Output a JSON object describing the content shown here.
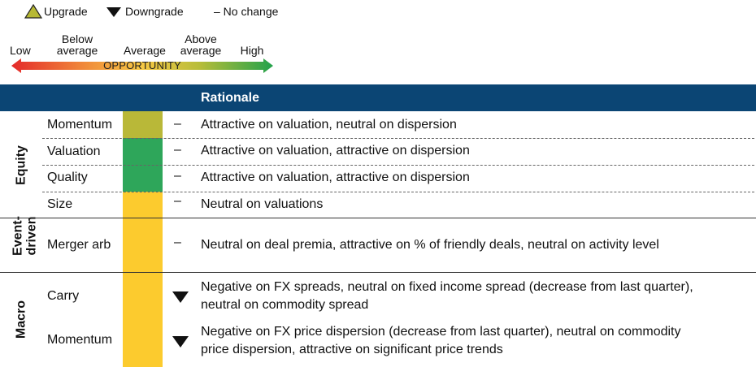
{
  "legend": {
    "upgrade": "Upgrade",
    "downgrade": "Downgrade",
    "no_change": "– No change"
  },
  "scale": {
    "low": "Low",
    "below_average_1": "Below",
    "below_average_2": "average",
    "average": "Average",
    "above_average_1": "Above",
    "above_average_2": "average",
    "high": "High",
    "axis_label": "OPPORTUNITY"
  },
  "colors": {
    "header": "#0b4574",
    "upgrade": "#b7b934",
    "green": "#2ea65a",
    "yellow": "#fccb2e",
    "olive": "#b9b838"
  },
  "table": {
    "header": "Rationale",
    "groups": [
      {
        "name": "Equity"
      },
      {
        "name_1": "Event-",
        "name_2": "driven"
      },
      {
        "name": "Macro"
      }
    ],
    "rows": [
      {
        "label": "Momentum",
        "change": "–",
        "rationale": "Attractive on valuation, neutral on dispersion"
      },
      {
        "label": "Valuation",
        "change": "–",
        "rationale": "Attractive on valuation, attractive on dispersion"
      },
      {
        "label": "Quality",
        "change": "–",
        "rationale": "Attractive on valuation, attractive on dispersion"
      },
      {
        "label": "Size",
        "change": "–",
        "rationale": "Neutral on valuations"
      },
      {
        "label": "Merger arb",
        "change": "–",
        "rationale": "Neutral on deal premia, attractive on % of friendly deals, neutral on activity level"
      },
      {
        "label": "Carry",
        "change": "downgrade",
        "rationale_1": "Negative on FX spreads, neutral on fixed income spread (decrease from last quarter),",
        "rationale_2": "neutral on commodity spread"
      },
      {
        "label": "Momentum",
        "change": "downgrade",
        "rationale_1": "Negative on FX price dispersion (decrease from last quarter), neutral on commodity",
        "rationale_2": "price dispersion, attractive on significant price trends"
      }
    ]
  }
}
